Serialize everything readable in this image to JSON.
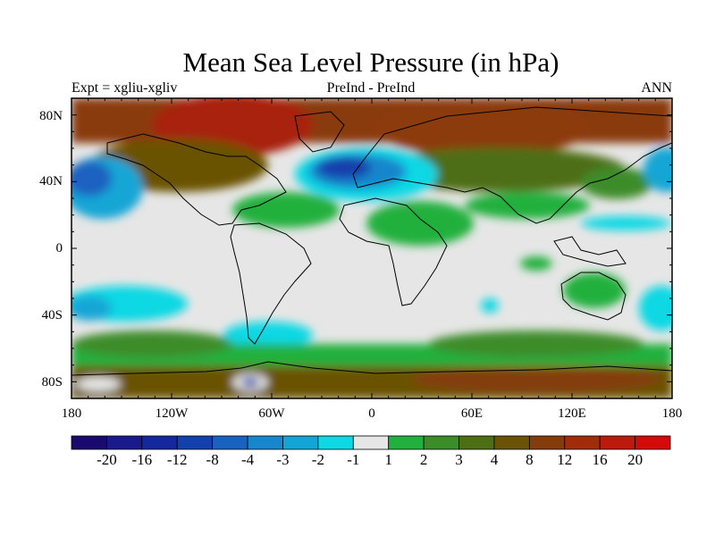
{
  "title": "Mean Sea Level Pressure (in hPa)",
  "expt_label": "Expt = xgliu-xgliv",
  "comparison_label": "PreInd - PreInd",
  "season_label": "ANN",
  "lat_labels": [
    "80N",
    "40N",
    "0",
    "40S",
    "80S"
  ],
  "lon_labels": [
    "180",
    "120W",
    "60W",
    "0",
    "60E",
    "120E",
    "180"
  ],
  "colorbar": {
    "labels": [
      "-20",
      "-16",
      "-12",
      "-8",
      "-4",
      "-3",
      "-2",
      "-1",
      "1",
      "2",
      "3",
      "4",
      "8",
      "12",
      "16",
      "20"
    ],
    "colors": [
      "#1a0a6e",
      "#1a1a8c",
      "#14289e",
      "#1240ac",
      "#1a62c0",
      "#1886cc",
      "#12a6d6",
      "#0ed8e4",
      "#e6e6e6",
      "#22b03e",
      "#3c8c2a",
      "#4e6e14",
      "#6a5206",
      "#843c0a",
      "#a02c0a",
      "#bc1a0c",
      "#d40a0a"
    ]
  },
  "chart_data": {
    "type": "heatmap",
    "title": "Mean Sea Level Pressure (in hPa)",
    "variable": "Mean Sea Level Pressure",
    "units": "hPa",
    "x_range": [
      -180,
      180
    ],
    "y_range": [
      -90,
      90
    ],
    "contour_levels": [
      -20,
      -16,
      -12,
      -8,
      -4,
      -3,
      -2,
      -1,
      1,
      2,
      3,
      4,
      8,
      12,
      16,
      20
    ],
    "features": [
      {
        "name": "arctic-high",
        "min_lon": -180,
        "max_lon": 180,
        "min_lat": 55,
        "max_lat": 90,
        "value": 14
      },
      {
        "name": "north-atlantic-low",
        "min_lon": -45,
        "max_lon": 5,
        "min_lat": 35,
        "max_lat": 58,
        "value": -6
      },
      {
        "name": "north-pacific-low-west",
        "min_lon": -180,
        "max_lon": -150,
        "min_lat": 20,
        "max_lat": 55,
        "value": -3
      },
      {
        "name": "north-pacific-low-east",
        "min_lon": 160,
        "max_lon": 180,
        "min_lat": 30,
        "max_lat": 55,
        "value": -2
      },
      {
        "name": "tropical-band",
        "min_lon": -180,
        "max_lon": 180,
        "min_lat": -20,
        "max_lat": 20,
        "value": 0
      },
      {
        "name": "south-pacific-low",
        "min_lon": -180,
        "max_lon": -130,
        "min_lat": -45,
        "max_lat": -20,
        "value": -2
      },
      {
        "name": "southern-ocean-ring",
        "min_lon": -180,
        "max_lon": 180,
        "min_lat": -65,
        "max_lat": -45,
        "value": 3
      },
      {
        "name": "antarctic-high",
        "min_lon": -180,
        "max_lon": 180,
        "min_lat": -90,
        "max_lat": -65,
        "value": 8
      }
    ]
  }
}
